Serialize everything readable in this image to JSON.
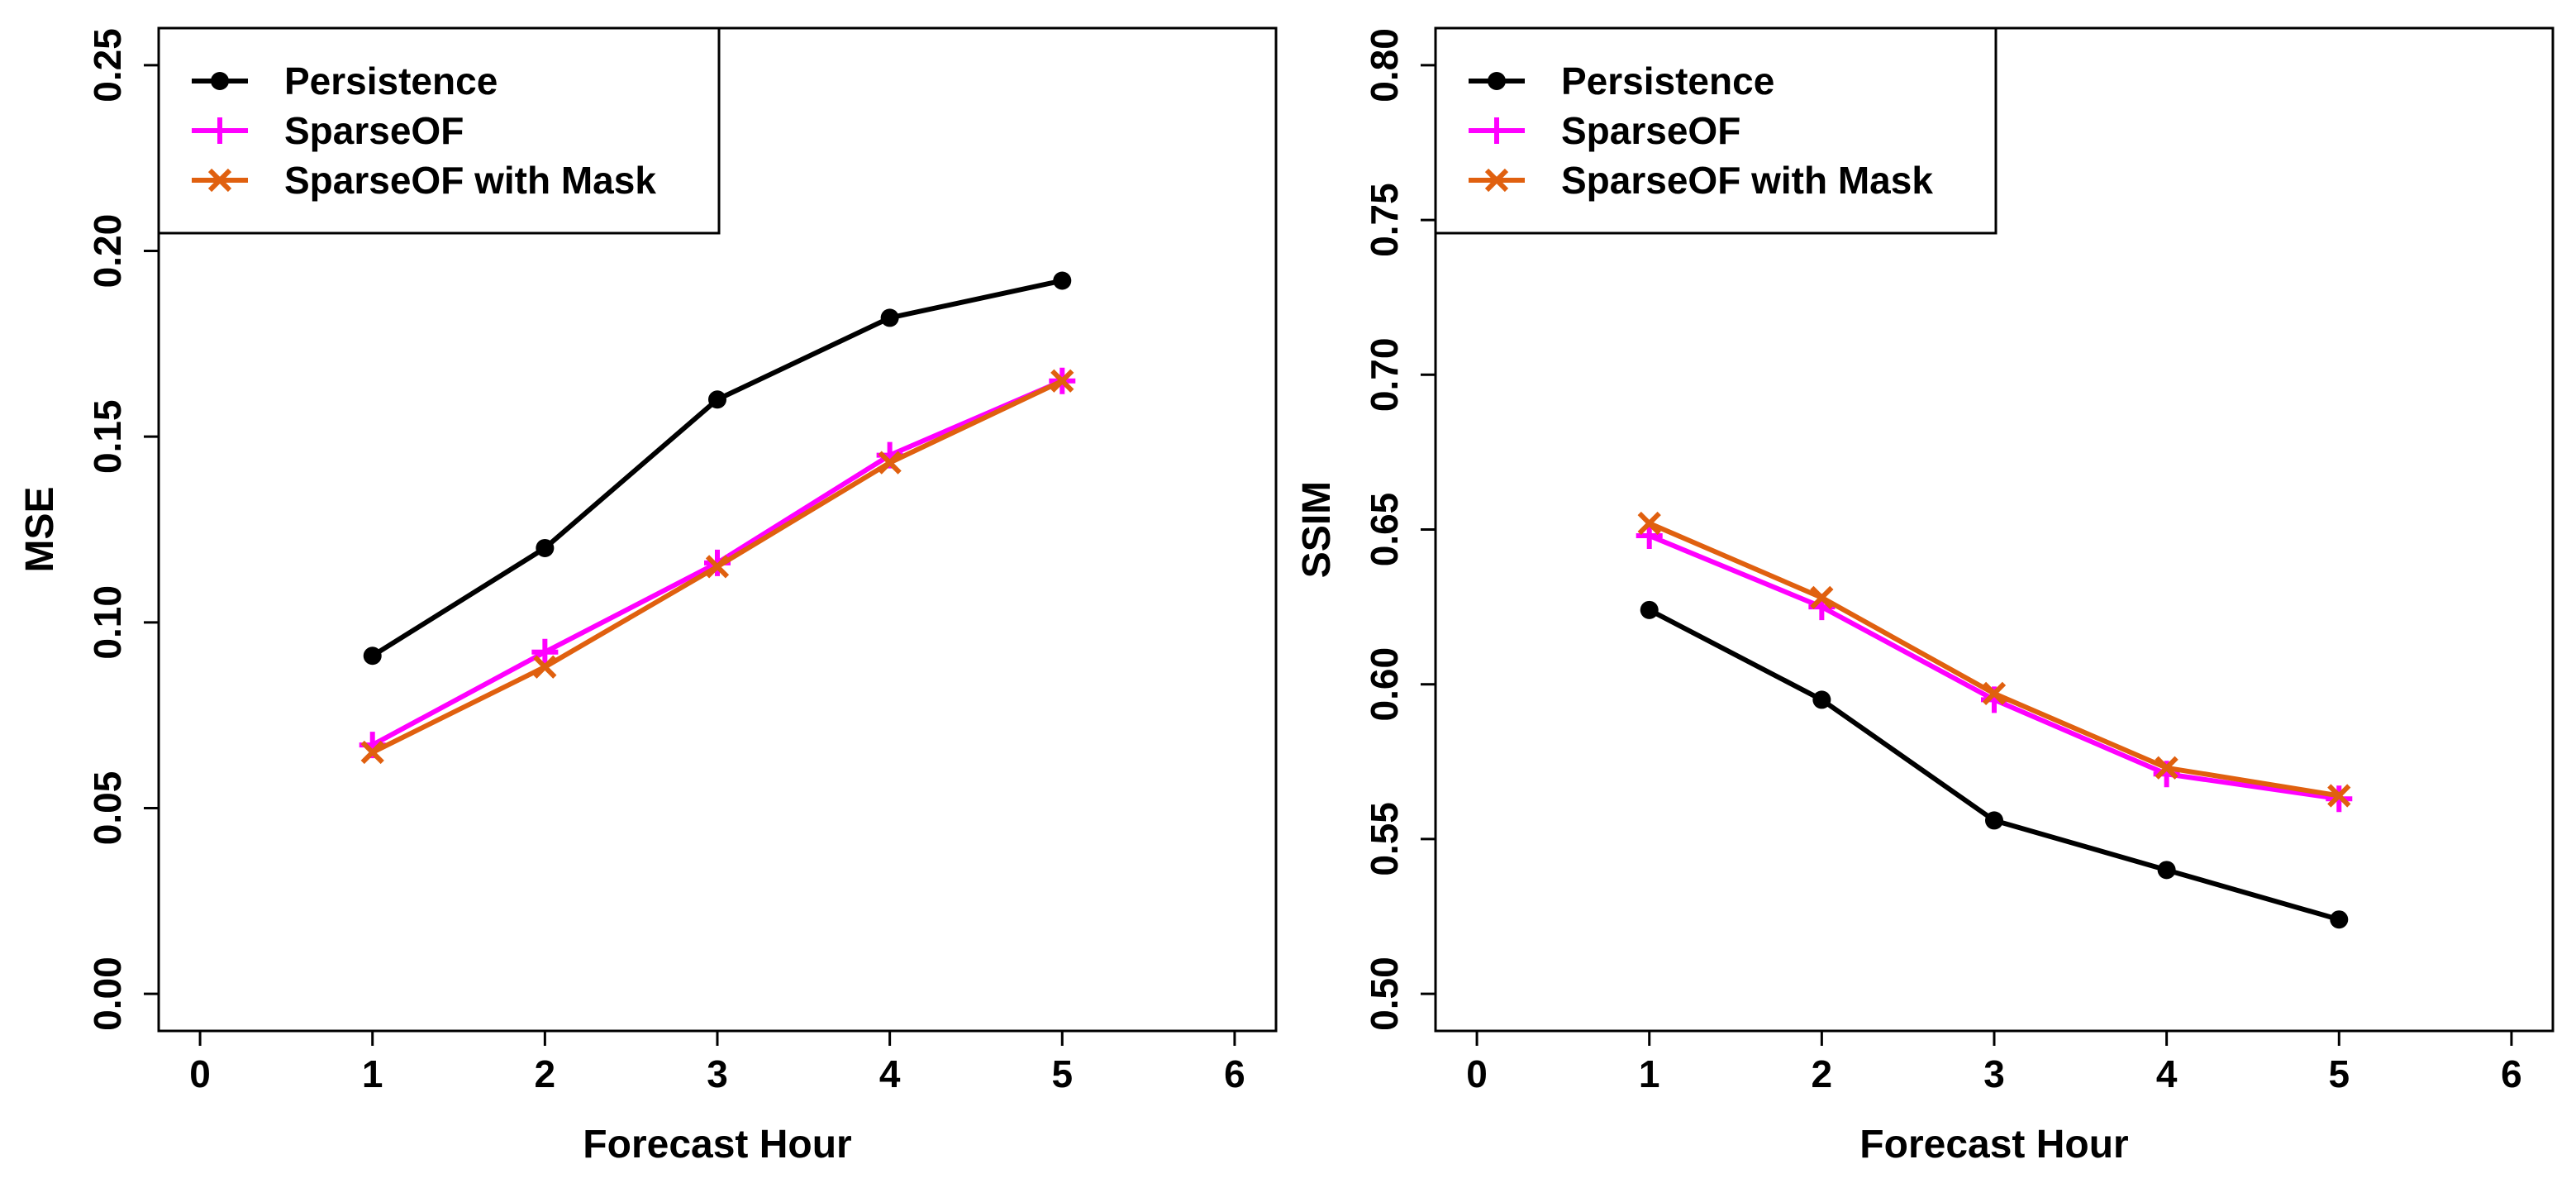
{
  "chart_data": [
    {
      "type": "line",
      "title": "",
      "xlabel": "Forecast Hour",
      "ylabel": "MSE",
      "xlim": [
        -0.24,
        6.24
      ],
      "ylim": [
        -0.01,
        0.26
      ],
      "grid": false,
      "legend_position": "top-left",
      "x_ticks": [
        0,
        1,
        2,
        3,
        4,
        5,
        6
      ],
      "x_tick_labels": [
        "0",
        "1",
        "2",
        "3",
        "4",
        "5",
        "6"
      ],
      "y_ticks": [
        0.0,
        0.05,
        0.1,
        0.15,
        0.2,
        0.25
      ],
      "y_tick_labels": [
        "0.00",
        "0.05",
        "0.10",
        "0.15",
        "0.20",
        "0.25"
      ],
      "x": [
        1,
        2,
        3,
        4,
        5
      ],
      "series": [
        {
          "name": "Persistence",
          "values": [
            0.091,
            0.12,
            0.16,
            0.182,
            0.192
          ],
          "color": "#000000",
          "marker": "dot"
        },
        {
          "name": "SparseOF",
          "values": [
            0.067,
            0.092,
            0.116,
            0.145,
            0.165
          ],
          "color": "#ff00ff",
          "marker": "plus"
        },
        {
          "name": "SparseOF with Mask",
          "values": [
            0.065,
            0.088,
            0.115,
            0.143,
            0.165
          ],
          "color": "#e0600f",
          "marker": "cross"
        }
      ]
    },
    {
      "type": "line",
      "title": "",
      "xlabel": "Forecast Hour",
      "ylabel": "SSIM",
      "xlim": [
        -0.24,
        6.24
      ],
      "ylim": [
        0.488,
        0.812
      ],
      "grid": false,
      "legend_position": "top-left",
      "x_ticks": [
        0,
        1,
        2,
        3,
        4,
        5,
        6
      ],
      "x_tick_labels": [
        "0",
        "1",
        "2",
        "3",
        "4",
        "5",
        "6"
      ],
      "y_ticks": [
        0.5,
        0.55,
        0.6,
        0.65,
        0.7,
        0.75,
        0.8
      ],
      "y_tick_labels": [
        "0.50",
        "0.55",
        "0.60",
        "0.65",
        "0.70",
        "0.75",
        "0.80"
      ],
      "x": [
        1,
        2,
        3,
        4,
        5
      ],
      "series": [
        {
          "name": "Persistence",
          "values": [
            0.624,
            0.595,
            0.556,
            0.54,
            0.524
          ],
          "color": "#000000",
          "marker": "dot"
        },
        {
          "name": "SparseOF",
          "values": [
            0.648,
            0.625,
            0.595,
            0.571,
            0.563
          ],
          "color": "#ff00ff",
          "marker": "plus"
        },
        {
          "name": "SparseOF with Mask",
          "values": [
            0.652,
            0.628,
            0.597,
            0.573,
            0.564
          ],
          "color": "#e0600f",
          "marker": "cross"
        }
      ]
    }
  ]
}
